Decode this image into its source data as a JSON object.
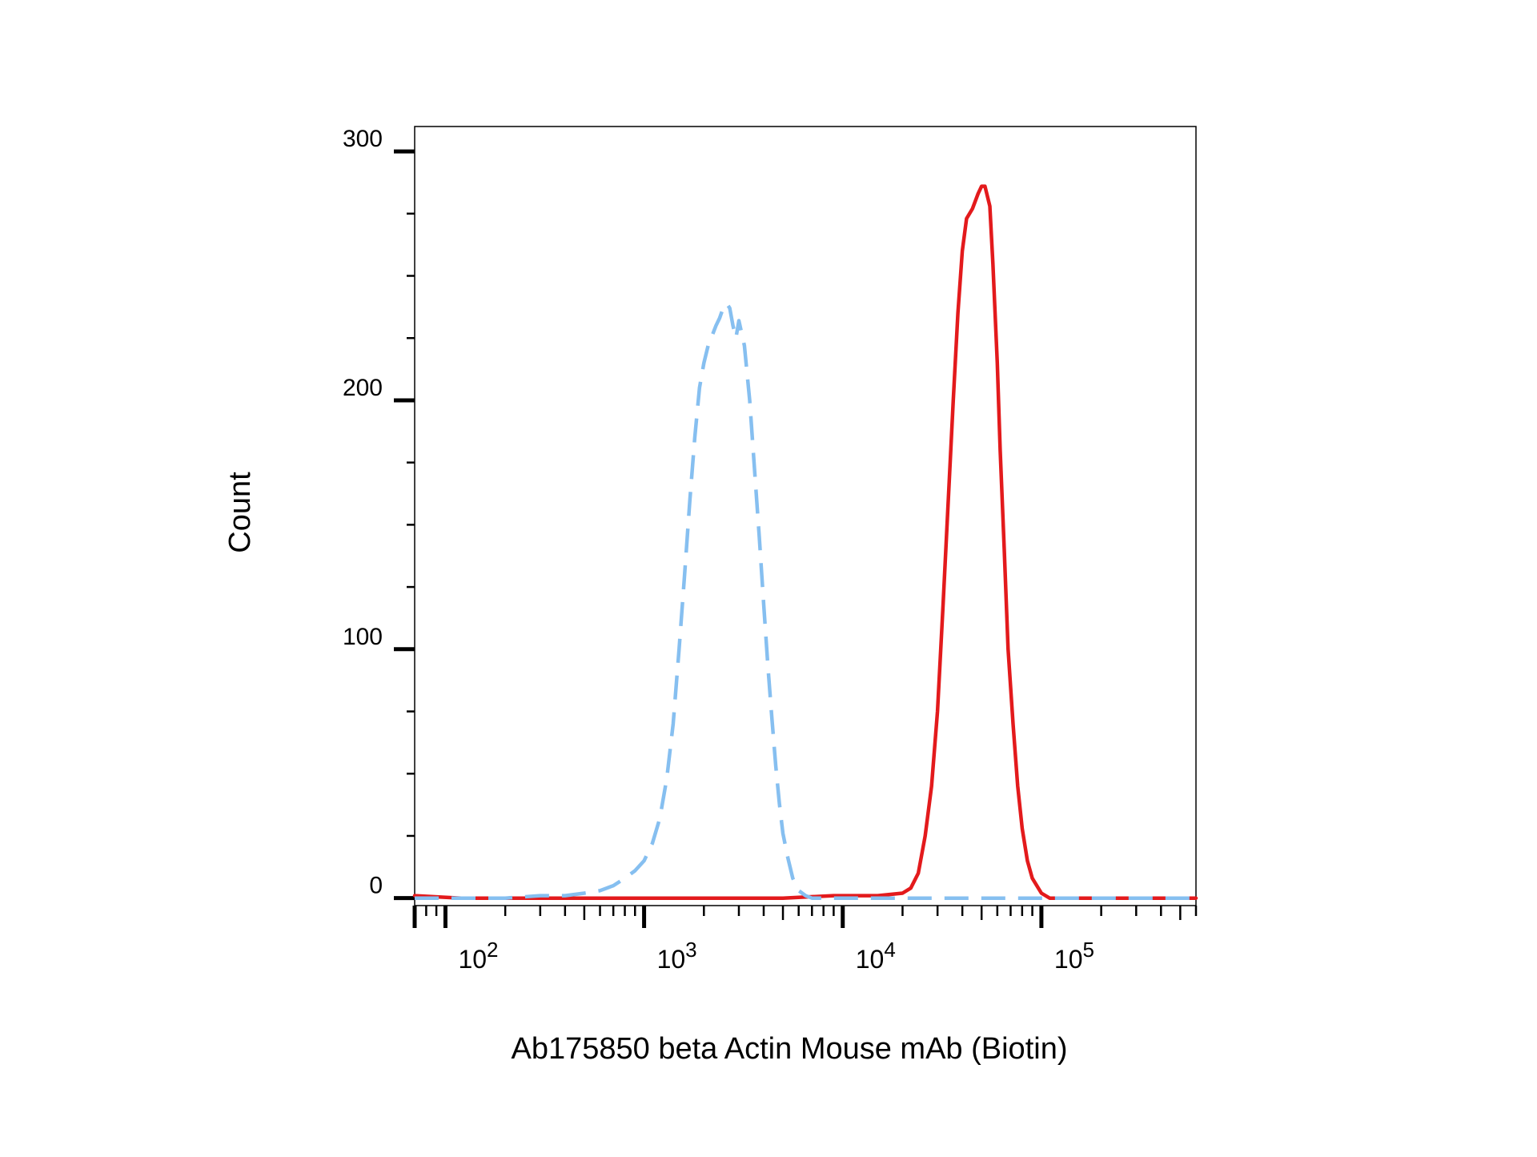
{
  "chart_data": {
    "type": "line",
    "title": "",
    "xlabel": "Ab175850 beta Actin Mouse mAb (Biotin)",
    "ylabel": "Count",
    "x_scale": "log",
    "xlim": [
      70,
      600000
    ],
    "ylim": [
      -3,
      310
    ],
    "x_ticks": [
      {
        "value": 100,
        "base": "10",
        "exp": "2"
      },
      {
        "value": 1000,
        "base": "10",
        "exp": "3"
      },
      {
        "value": 10000,
        "base": "10",
        "exp": "4"
      },
      {
        "value": 100000,
        "base": "10",
        "exp": "5"
      }
    ],
    "y_ticks": [
      {
        "value": 0,
        "label": "0"
      },
      {
        "value": 100,
        "label": "100"
      },
      {
        "value": 200,
        "label": "200"
      },
      {
        "value": 300,
        "label": "300"
      }
    ],
    "grid": false,
    "legend": "none",
    "series": [
      {
        "color": "#e31a1c",
        "dash": "solid",
        "x": [
          70,
          120,
          300,
          1000,
          5000,
          9000,
          15000,
          20000,
          22000,
          24000,
          26000,
          28000,
          30000,
          32000,
          34000,
          36000,
          38000,
          40000,
          42000,
          45000,
          48000,
          50000,
          52000,
          55000,
          57000,
          60000,
          62000,
          65000,
          68000,
          72000,
          76000,
          80000,
          85000,
          90000,
          100000,
          110000,
          130000,
          200000,
          600000
        ],
        "y": [
          1,
          0,
          0,
          0,
          0,
          1,
          1,
          2,
          4,
          10,
          25,
          45,
          75,
          118,
          160,
          200,
          235,
          260,
          273,
          277,
          283,
          286,
          286,
          278,
          255,
          215,
          180,
          140,
          100,
          70,
          45,
          28,
          15,
          8,
          2,
          0,
          0,
          0,
          0
        ]
      },
      {
        "color": "#86bff0",
        "dash": "dashed",
        "x": [
          70,
          200,
          300,
          400,
          500,
          600,
          700,
          800,
          900,
          1000,
          1100,
          1200,
          1300,
          1400,
          1500,
          1600,
          1700,
          1800,
          1900,
          2000,
          2100,
          2200,
          2300,
          2400,
          2500,
          2600,
          2700,
          2800,
          2900,
          3000,
          3200,
          3400,
          3600,
          3800,
          4000,
          4200,
          4400,
          4600,
          4800,
          5000,
          5300,
          5600,
          6000,
          6500,
          7000,
          8000,
          10000,
          20000,
          100000,
          600000
        ],
        "y": [
          0,
          0,
          1,
          1,
          2,
          3,
          5,
          8,
          11,
          15,
          22,
          32,
          48,
          70,
          100,
          130,
          160,
          185,
          205,
          215,
          222,
          226,
          230,
          233,
          237,
          239,
          237,
          230,
          225,
          232,
          222,
          200,
          172,
          145,
          118,
          93,
          72,
          53,
          38,
          26,
          16,
          8,
          3,
          1,
          0,
          0,
          0,
          0,
          0,
          0
        ]
      }
    ]
  }
}
